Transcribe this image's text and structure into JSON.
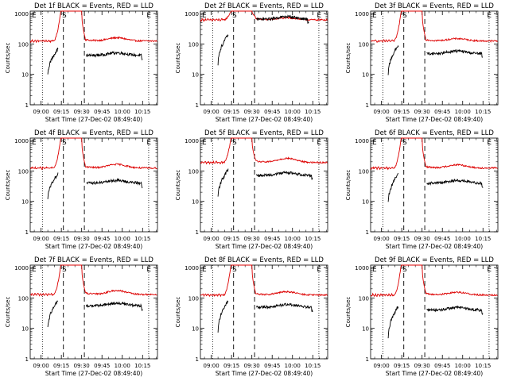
{
  "colors": {
    "events": "#000000",
    "lld": "#dd0000",
    "axis": "#000000",
    "background": "#ffffff"
  },
  "common": {
    "title_suffix": "BLACK = Events, RED = LLD",
    "xlabel": "Start Time (27-Dec-02 08:49:40)",
    "ylabel": "Counts/sec",
    "xticks": [
      {
        "t": 540,
        "label": "09:00"
      },
      {
        "t": 555,
        "label": "09:15"
      },
      {
        "t": 570,
        "label": "09:30"
      },
      {
        "t": 585,
        "label": "09:45"
      },
      {
        "t": 600,
        "label": "10:00"
      },
      {
        "t": 615,
        "label": "10:15"
      }
    ],
    "yticks": [
      {
        "v": 1,
        "label": "1"
      },
      {
        "v": 10,
        "label": "10"
      },
      {
        "v": 100,
        "label": "100"
      },
      {
        "v": 1000,
        "label": "1000"
      }
    ],
    "markers": {
      "e1": "E",
      "s": "S",
      "e2": "E"
    }
  },
  "chart_data": [
    {
      "type": "line",
      "panel": "det1f",
      "title": "Det 1f BLACK = Events, RED = LLD",
      "xlabel": "Start Time (27-Dec-02 08:49:40)",
      "ylabel": "Counts/sec",
      "xlim_minutes": [
        532,
        626
      ],
      "ylim": [
        1,
        1200
      ],
      "yscale": "log",
      "lld": {
        "base": 125,
        "rise_peak": 1200,
        "bump": 160
      },
      "events": {
        "pre": [
          9,
          70
        ],
        "post": 42,
        "segment_end": 615
      },
      "dotted_lines_minutes": [
        541,
        619.5
      ],
      "dashed_lines_minutes": [
        556.5,
        572
      ]
    },
    {
      "type": "line",
      "panel": "det2f",
      "title": "Det 2f BLACK = Events, RED = LLD",
      "xlabel": "Start Time (27-Dec-02 08:49:40)",
      "ylabel": "Counts/sec",
      "xlim_minutes": [
        532,
        626
      ],
      "ylim": [
        1,
        1200
      ],
      "yscale": "log",
      "lld": {
        "base": 620,
        "rise_peak": 1200,
        "bump": 720
      },
      "events": {
        "pre": [
          22,
          200
        ],
        "post": 650,
        "segment_end": 612
      },
      "dotted_lines_minutes": [
        541,
        619.5
      ],
      "dashed_lines_minutes": [
        556.5,
        572
      ]
    },
    {
      "type": "line",
      "panel": "det3f",
      "title": "Det 3f BLACK = Events, RED = LLD",
      "xlabel": "Start Time (27-Dec-02 08:49:40)",
      "ylabel": "Counts/sec",
      "xlim_minutes": [
        532,
        626
      ],
      "ylim": [
        1,
        1200
      ],
      "yscale": "log",
      "lld": {
        "base": 125,
        "rise_peak": 1200,
        "bump": 150
      },
      "events": {
        "pre": [
          10,
          90
        ],
        "post": 48,
        "segment_end": 615
      },
      "dotted_lines_minutes": [
        541,
        619.5
      ],
      "dashed_lines_minutes": [
        556.5,
        572
      ]
    },
    {
      "type": "line",
      "panel": "det4f",
      "title": "Det 4f BLACK = Events, RED = LLD",
      "xlabel": "Start Time (27-Dec-02 08:49:40)",
      "ylabel": "Counts/sec",
      "xlim_minutes": [
        532,
        626
      ],
      "ylim": [
        1,
        1200
      ],
      "yscale": "log",
      "lld": {
        "base": 125,
        "rise_peak": 1200,
        "bump": 165
      },
      "events": {
        "pre": [
          12,
          80
        ],
        "post": 40,
        "segment_end": 615
      },
      "dotted_lines_minutes": [
        541,
        619.5
      ],
      "dashed_lines_minutes": [
        556.5,
        572
      ]
    },
    {
      "type": "line",
      "panel": "det5f",
      "title": "Det 5f BLACK = Events, RED = LLD",
      "xlabel": "Start Time (27-Dec-02 08:49:40)",
      "ylabel": "Counts/sec",
      "xlim_minutes": [
        532,
        626
      ],
      "ylim": [
        1,
        1200
      ],
      "yscale": "log",
      "lld": {
        "base": 190,
        "rise_peak": 1200,
        "bump": 260
      },
      "events": {
        "pre": [
          14,
          110
        ],
        "post": 72,
        "segment_end": 615
      },
      "dotted_lines_minutes": [
        541,
        619.5
      ],
      "dashed_lines_minutes": [
        556.5,
        572
      ]
    },
    {
      "type": "line",
      "panel": "det6f",
      "title": "Det 6f BLACK = Events, RED = LLD",
      "xlabel": "Start Time (27-Dec-02 08:49:40)",
      "ylabel": "Counts/sec",
      "xlim_minutes": [
        532,
        626
      ],
      "ylim": [
        1,
        1200
      ],
      "yscale": "log",
      "lld": {
        "base": 125,
        "rise_peak": 1200,
        "bump": 160
      },
      "events": {
        "pre": [
          9,
          80
        ],
        "post": 40,
        "segment_end": 615
      },
      "dotted_lines_minutes": [
        541,
        619.5
      ],
      "dashed_lines_minutes": [
        556.5,
        572
      ]
    },
    {
      "type": "line",
      "panel": "det7f",
      "title": "Det 7f BLACK = Events, RED = LLD",
      "xlabel": "Start Time (27-Dec-02 08:49:40)",
      "ylabel": "Counts/sec",
      "xlim_minutes": [
        532,
        626
      ],
      "ylim": [
        1,
        1200
      ],
      "yscale": "log",
      "lld": {
        "base": 130,
        "rise_peak": 1200,
        "bump": 175
      },
      "events": {
        "pre": [
          10,
          80
        ],
        "post": 55,
        "segment_end": 615
      },
      "dotted_lines_minutes": [
        541,
        619.5
      ],
      "dashed_lines_minutes": [
        556.5,
        572
      ]
    },
    {
      "type": "line",
      "panel": "det8f",
      "title": "Det 8f BLACK = Events, RED = LLD",
      "xlabel": "Start Time (27-Dec-02 08:49:40)",
      "ylabel": "Counts/sec",
      "xlim_minutes": [
        532,
        626
      ],
      "ylim": [
        1,
        1200
      ],
      "yscale": "log",
      "lld": {
        "base": 125,
        "rise_peak": 1200,
        "bump": 160
      },
      "events": {
        "pre": [
          8,
          80
        ],
        "post": 50,
        "segment_end": 615
      },
      "dotted_lines_minutes": [
        541,
        619.5
      ],
      "dashed_lines_minutes": [
        556.5,
        572
      ]
    },
    {
      "type": "line",
      "panel": "det9f",
      "title": "Det 9f BLACK = Events, RED = LLD",
      "xlabel": "Start Time (27-Dec-02 08:49:40)",
      "ylabel": "Counts/sec",
      "xlim_minutes": [
        532,
        626
      ],
      "ylim": [
        1,
        1200
      ],
      "yscale": "log",
      "lld": {
        "base": 125,
        "rise_peak": 1200,
        "bump": 155
      },
      "events": {
        "pre": [
          5,
          55
        ],
        "post": 40,
        "segment_end": 615
      },
      "dotted_lines_minutes": [
        541,
        619.5
      ],
      "dashed_lines_minutes": [
        556.5,
        572
      ]
    }
  ]
}
